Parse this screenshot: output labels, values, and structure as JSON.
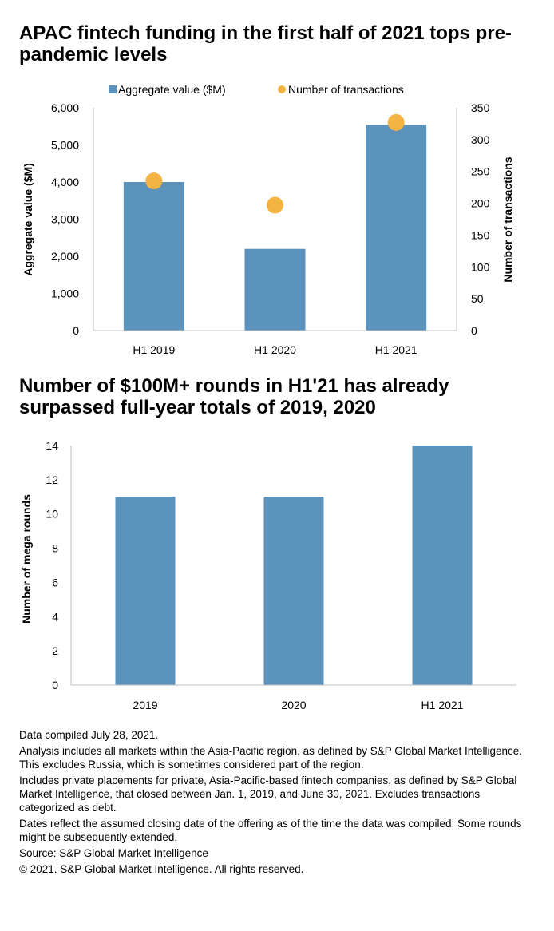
{
  "colors": {
    "bar": "#5b93bd",
    "dot": "#f4b443",
    "axis": "#bfbfbf"
  },
  "chart_data": [
    {
      "type": "bar",
      "title": "APAC fintech funding in the first half of 2021 tops pre-pandemic levels",
      "categories": [
        "H1 2019",
        "H1 2020",
        "H1 2021"
      ],
      "series": [
        {
          "name": "Aggregate value ($M)",
          "kind": "bar",
          "axis": "left",
          "values": [
            4000,
            2200,
            5540
          ]
        },
        {
          "name": "Number of transactions",
          "kind": "scatter",
          "axis": "right",
          "values": [
            235,
            197,
            327
          ]
        }
      ],
      "ylabel": "Aggregate value ($M)",
      "y2label": "Number of transactions",
      "ylim": [
        0,
        6000
      ],
      "y2lim": [
        0,
        350
      ],
      "yticks": [
        "0",
        "1,000",
        "2,000",
        "3,000",
        "4,000",
        "5,000",
        "6,000"
      ],
      "y2ticks": [
        "0",
        "50",
        "100",
        "150",
        "200",
        "250",
        "300",
        "350"
      ],
      "legend": "top"
    },
    {
      "type": "bar",
      "title": "Number of $100M+ rounds in H1'21 has already surpassed full-year totals of 2019, 2020",
      "categories": [
        "2019",
        "2020",
        "H1 2021"
      ],
      "values": [
        11,
        11,
        14
      ],
      "ylabel": "Number of mega rounds",
      "ylim": [
        0,
        14
      ],
      "yticks": [
        "0",
        "2",
        "4",
        "6",
        "8",
        "10",
        "12",
        "14"
      ]
    }
  ],
  "notes": [
    "Data compiled July 28, 2021.",
    "Analysis includes all markets within the Asia-Pacific region, as defined by S&P Global Market Intelligence. This excludes Russia, which is sometimes considered part of the region.",
    "Includes private placements for private, Asia-Pacific-based fintech companies, as defined by S&P Global Market Intelligence, that closed between Jan. 1, 2019, and June 30, 2021. Excludes transactions categorized as debt.",
    "Dates reflect the assumed closing date of the offering as of the time the data was compiled. Some rounds might be subsequently extended.",
    "Source: S&P Global Market Intelligence",
    "© 2021. S&P Global Market Intelligence. All rights reserved."
  ]
}
